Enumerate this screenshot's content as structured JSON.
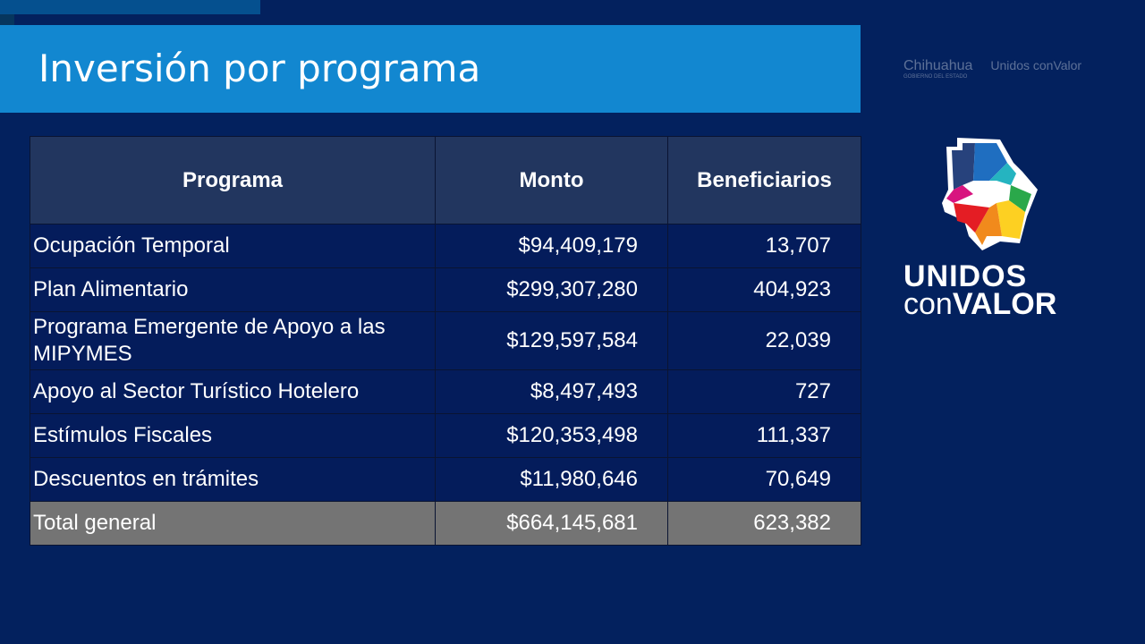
{
  "title": "Inversión por programa",
  "table": {
    "headers": [
      "Programa",
      "Monto",
      "Beneficiarios"
    ],
    "rows": [
      [
        "Ocupación Temporal",
        "$94,409,179",
        "13,707"
      ],
      [
        "Plan Alimentario",
        "$299,307,280",
        "404,923"
      ],
      [
        "Programa Emergente de Apoyo a las MIPYMES",
        "$129,597,584",
        "22,039"
      ],
      [
        "Apoyo al Sector Turístico Hotelero",
        "$8,497,493",
        "727"
      ],
      [
        "Estímulos Fiscales",
        "$120,353,498",
        "111,337"
      ],
      [
        "Descuentos en trámites",
        "$11,980,646",
        "70,649"
      ]
    ],
    "total": [
      "Total general",
      "$664,145,681",
      "623,382"
    ]
  },
  "logos": {
    "chihuahua": "Chihuahua",
    "chihuahua_sub": "GOBIERNO DEL ESTADO",
    "small_brand": "Unidos conValor",
    "brand_line1": "UNIDOS",
    "brand_con": "con",
    "brand_valor": "VALOR"
  }
}
